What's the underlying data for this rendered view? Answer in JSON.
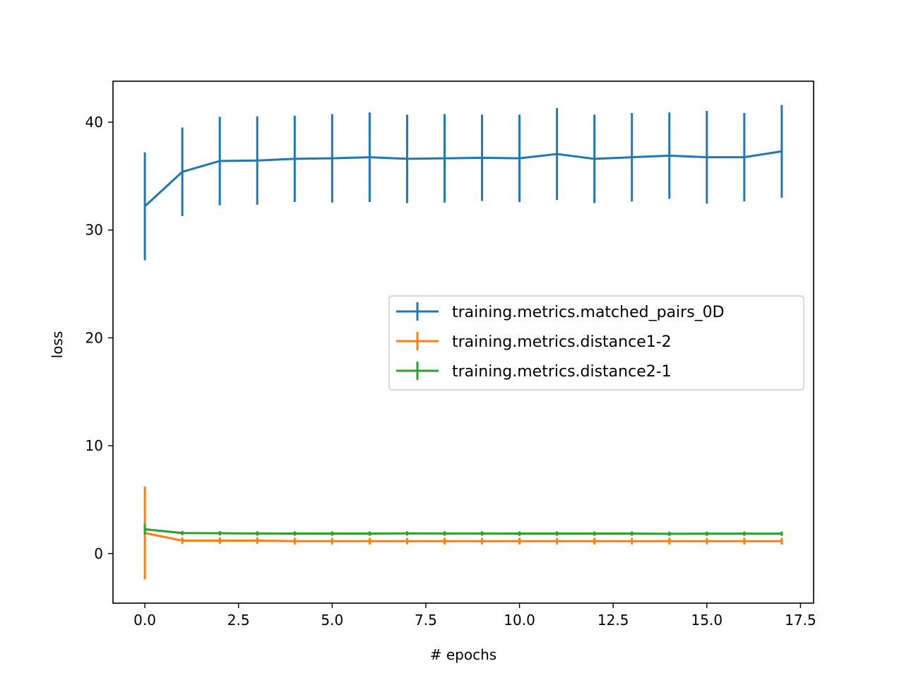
{
  "chart_data": {
    "type": "line",
    "title": "",
    "xlabel": "# epochs",
    "ylabel": "loss",
    "xlim": [
      -0.85,
      17.85
    ],
    "ylim": [
      -4.6,
      43.8
    ],
    "xticks": [
      0.0,
      2.5,
      5.0,
      7.5,
      10.0,
      12.5,
      15.0,
      17.5
    ],
    "xtick_labels": [
      "0.0",
      "2.5",
      "5.0",
      "7.5",
      "10.0",
      "12.5",
      "15.0",
      "17.5"
    ],
    "yticks": [
      0,
      10,
      20,
      30,
      40
    ],
    "ytick_labels": [
      "0",
      "10",
      "20",
      "30",
      "40"
    ],
    "grid": false,
    "legend_position": "center-right",
    "x": [
      0,
      1,
      2,
      3,
      4,
      5,
      6,
      7,
      8,
      9,
      10,
      11,
      12,
      13,
      14,
      15,
      16,
      17
    ],
    "series": [
      {
        "name": "training.metrics.matched_pairs_0D",
        "color": "#1f77b4",
        "values": [
          32.2,
          35.4,
          36.4,
          36.45,
          36.6,
          36.65,
          36.75,
          36.6,
          36.65,
          36.7,
          36.65,
          37.05,
          36.6,
          36.75,
          36.9,
          36.75,
          36.75,
          37.3
        ],
        "errors": [
          5.0,
          4.1,
          4.1,
          4.1,
          4.0,
          4.1,
          4.15,
          4.1,
          4.1,
          4.0,
          4.05,
          4.25,
          4.1,
          4.1,
          4.0,
          4.3,
          4.1,
          4.3
        ]
      },
      {
        "name": "training.metrics.distance1-2",
        "color": "#ff7f0e",
        "values": [
          1.9,
          1.2,
          1.2,
          1.2,
          1.15,
          1.15,
          1.15,
          1.15,
          1.15,
          1.15,
          1.15,
          1.15,
          1.15,
          1.15,
          1.15,
          1.15,
          1.15,
          1.15
        ],
        "errors": [
          4.3,
          0.3,
          0.3,
          0.3,
          0.3,
          0.3,
          0.3,
          0.3,
          0.3,
          0.3,
          0.3,
          0.3,
          0.3,
          0.3,
          0.3,
          0.3,
          0.3,
          0.3
        ]
      },
      {
        "name": "training.metrics.distance2-1",
        "color": "#2ca02c",
        "values": [
          2.25,
          1.9,
          1.88,
          1.86,
          1.85,
          1.85,
          1.85,
          1.87,
          1.86,
          1.86,
          1.85,
          1.85,
          1.85,
          1.85,
          1.83,
          1.84,
          1.84,
          1.84
        ],
        "errors": [
          0.5,
          0.2,
          0.2,
          0.2,
          0.2,
          0.2,
          0.2,
          0.2,
          0.2,
          0.2,
          0.2,
          0.2,
          0.2,
          0.2,
          0.2,
          0.2,
          0.2,
          0.2
        ]
      }
    ]
  }
}
